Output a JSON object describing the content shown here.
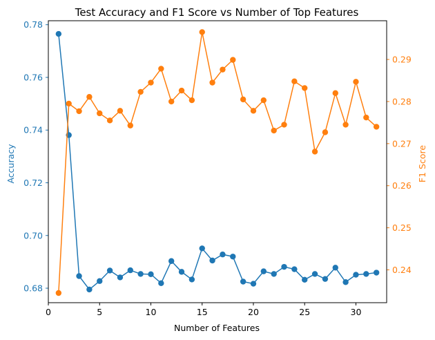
{
  "chart_data": {
    "type": "line",
    "title": "Test Accuracy and F1 Score vs Number of Top Features",
    "xlabel": "Number of Features",
    "xlim": [
      0,
      33
    ],
    "xticks": [
      "0",
      "5",
      "10",
      "15",
      "20",
      "25",
      "30"
    ],
    "x": [
      1,
      2,
      3,
      4,
      5,
      6,
      7,
      8,
      9,
      10,
      11,
      12,
      13,
      14,
      15,
      16,
      17,
      18,
      19,
      20,
      21,
      22,
      23,
      24,
      25,
      26,
      27,
      28,
      29,
      30,
      31,
      32
    ],
    "y_left": {
      "label": "Accuracy",
      "color": "#1f77b4",
      "ylim": [
        0.6745,
        0.7815
      ],
      "ticks": [
        "0.68",
        "0.70",
        "0.72",
        "0.74",
        "0.76",
        "0.78"
      ]
    },
    "y_right": {
      "label": "F1 Score",
      "color": "#ff7f0e",
      "ylim": [
        0.2322,
        0.2992
      ],
      "ticks": [
        "0.24",
        "0.25",
        "0.26",
        "0.27",
        "0.28",
        "0.29"
      ]
    },
    "series": [
      {
        "axis": "left",
        "color": "#1f77b4",
        "values": [
          0.7765,
          0.7381,
          0.6846,
          0.6795,
          0.6827,
          0.6867,
          0.6841,
          0.6868,
          0.6854,
          0.6853,
          0.6819,
          0.6903,
          0.6862,
          0.6833,
          0.6951,
          0.6905,
          0.6928,
          0.692,
          0.6825,
          0.6817,
          0.6864,
          0.6854,
          0.6881,
          0.6872,
          0.6832,
          0.6854,
          0.6835,
          0.6878,
          0.6823,
          0.6851,
          0.6854,
          0.6859
        ]
      },
      {
        "axis": "right",
        "color": "#ff7f0e",
        "values": [
          0.2345,
          0.2795,
          0.2777,
          0.2811,
          0.2772,
          0.2755,
          0.2778,
          0.2743,
          0.2823,
          0.2845,
          0.2878,
          0.28,
          0.2826,
          0.2803,
          0.2965,
          0.2845,
          0.2876,
          0.2899,
          0.2805,
          0.2778,
          0.2803,
          0.2731,
          0.2745,
          0.2848,
          0.2832,
          0.2681,
          0.2727,
          0.282,
          0.2745,
          0.2847,
          0.2762,
          0.274
        ]
      }
    ]
  }
}
